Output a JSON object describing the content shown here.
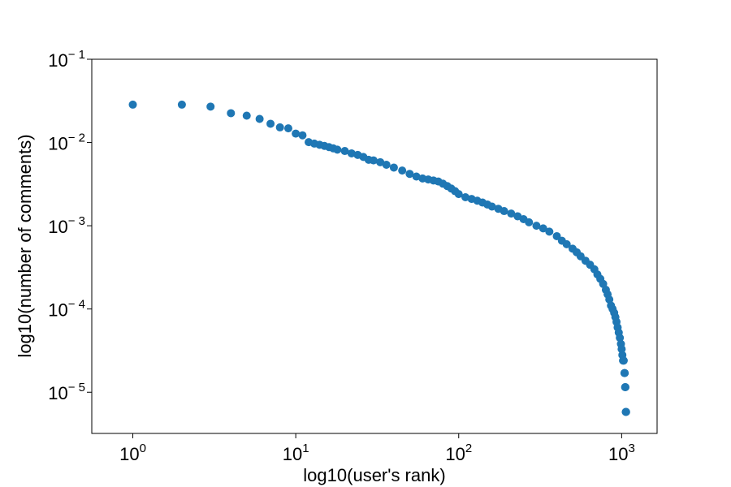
{
  "chart_data": {
    "type": "scatter",
    "title": "",
    "xlabel": "log10(user's rank)",
    "ylabel": "log10(number of comments)",
    "xscale": "log",
    "yscale": "log",
    "xlim": [
      0.56,
      1650
    ],
    "ylim": [
      3.2e-06,
      0.1
    ],
    "x_ticks": [
      {
        "value": 1,
        "base": "10",
        "exp": "0"
      },
      {
        "value": 10,
        "base": "10",
        "exp": "1"
      },
      {
        "value": 100,
        "base": "10",
        "exp": "2"
      },
      {
        "value": 1000,
        "base": "10",
        "exp": "3"
      }
    ],
    "y_ticks": [
      {
        "value": 0.1,
        "base": "10",
        "exp": "− 1"
      },
      {
        "value": 0.01,
        "base": "10",
        "exp": "− 2"
      },
      {
        "value": 0.001,
        "base": "10",
        "exp": "− 3"
      },
      {
        "value": 0.0001,
        "base": "10",
        "exp": "− 4"
      },
      {
        "value": 1e-05,
        "base": "10",
        "exp": "− 5"
      }
    ],
    "grid": false,
    "marker_color": "#1f77b4",
    "series": [
      {
        "points": [
          [
            1,
            0.0285
          ],
          [
            2,
            0.0285
          ],
          [
            3,
            0.027
          ],
          [
            4,
            0.0225
          ],
          [
            5,
            0.021
          ],
          [
            6,
            0.0192
          ],
          [
            7,
            0.0168
          ],
          [
            8,
            0.0152
          ],
          [
            9,
            0.0148
          ],
          [
            10,
            0.0128
          ],
          [
            11,
            0.0122
          ],
          [
            12,
            0.0101
          ],
          [
            13,
            0.0097
          ],
          [
            14,
            0.0094
          ],
          [
            15,
            0.0091
          ],
          [
            16,
            0.0088
          ],
          [
            17,
            0.0085
          ],
          [
            18,
            0.0082
          ],
          [
            20,
            0.0079
          ],
          [
            22,
            0.0074
          ],
          [
            24,
            0.0071
          ],
          [
            26,
            0.0067
          ],
          [
            28,
            0.0062
          ],
          [
            30,
            0.0061
          ],
          [
            33,
            0.0058
          ],
          [
            36,
            0.0054
          ],
          [
            40,
            0.005
          ],
          [
            45,
            0.0046
          ],
          [
            50,
            0.0042
          ],
          [
            55,
            0.0039
          ],
          [
            60,
            0.0037
          ],
          [
            65,
            0.0036
          ],
          [
            70,
            0.0035
          ],
          [
            75,
            0.0034
          ],
          [
            80,
            0.0032
          ],
          [
            85,
            0.003
          ],
          [
            90,
            0.0028
          ],
          [
            95,
            0.0026
          ],
          [
            100,
            0.0024
          ],
          [
            110,
            0.0022
          ],
          [
            120,
            0.0021
          ],
          [
            130,
            0.002
          ],
          [
            140,
            0.0019
          ],
          [
            150,
            0.0018
          ],
          [
            160,
            0.0017
          ],
          [
            175,
            0.0016
          ],
          [
            190,
            0.0015
          ],
          [
            210,
            0.0014
          ],
          [
            230,
            0.0013
          ],
          [
            250,
            0.0012
          ],
          [
            270,
            0.0011
          ],
          [
            300,
            0.001
          ],
          [
            330,
            0.00093
          ],
          [
            360,
            0.00085
          ],
          [
            400,
            0.00075
          ],
          [
            430,
            0.00066
          ],
          [
            460,
            0.0006
          ],
          [
            500,
            0.00053
          ],
          [
            530,
            0.00048
          ],
          [
            560,
            0.00043
          ],
          [
            600,
            0.00038
          ],
          [
            640,
            0.00034
          ],
          [
            680,
            0.0003
          ],
          [
            710,
            0.00026
          ],
          [
            740,
            0.00023
          ],
          [
            770,
            0.0002
          ],
          [
            800,
            0.00017
          ],
          [
            820,
            0.00015
          ],
          [
            840,
            0.00013
          ],
          [
            860,
            0.00011
          ],
          [
            880,
            0.0001
          ],
          [
            900,
            9e-05
          ],
          [
            915,
            8e-05
          ],
          [
            930,
            7e-05
          ],
          [
            945,
            6e-05
          ],
          [
            960,
            5.2e-05
          ],
          [
            975,
            4.5e-05
          ],
          [
            990,
            3.8e-05
          ],
          [
            1000,
            3.3e-05
          ],
          [
            1010,
            2.8e-05
          ],
          [
            1020,
            2.4e-05
          ],
          [
            1030,
            2.4e-05
          ],
          [
            1040,
            1.7e-05
          ],
          [
            1045,
            1.7e-05
          ],
          [
            1050,
            1.15e-05
          ],
          [
            1055,
            1.15e-05
          ],
          [
            1060,
            5.8e-06
          ],
          [
            1065,
            5.8e-06
          ]
        ]
      }
    ]
  }
}
